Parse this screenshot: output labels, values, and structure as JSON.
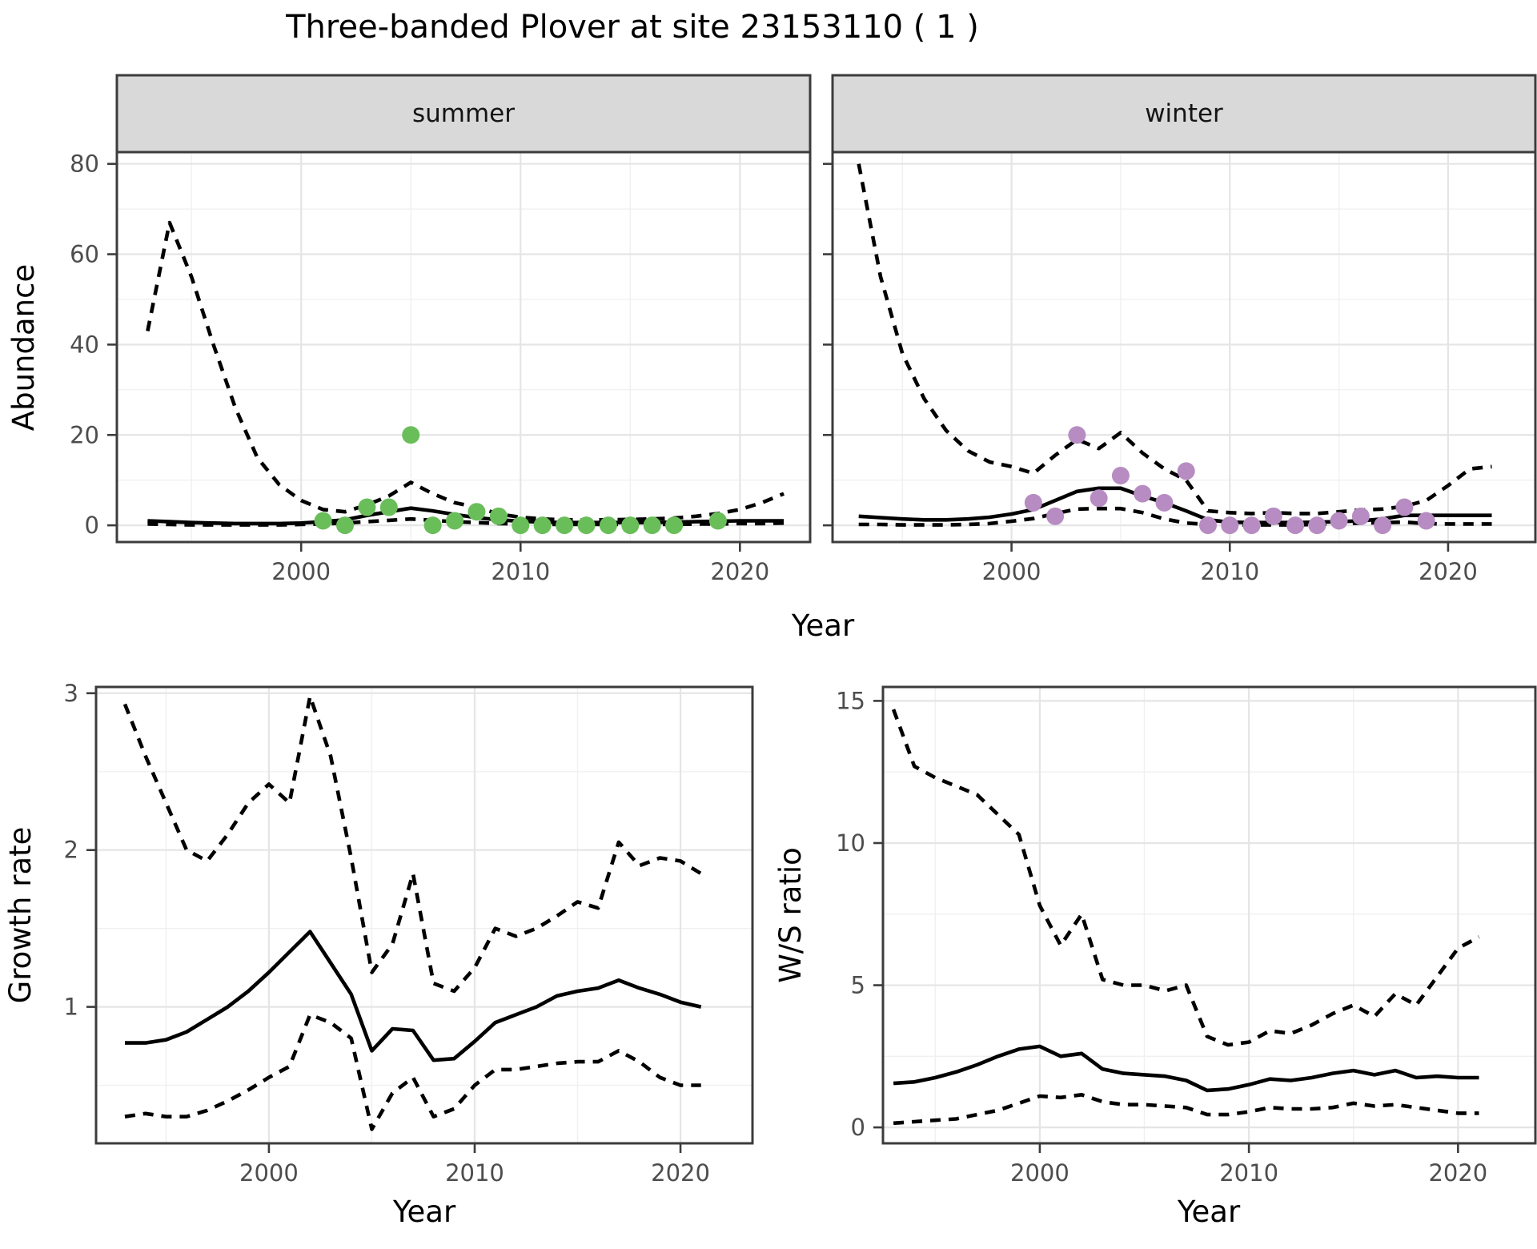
{
  "page": {
    "title": "Three-banded Plover at site 23153110 ( 1 )"
  },
  "colors": {
    "background": "#ffffff",
    "line": "#000000",
    "point_summer": "#6abe5a",
    "point_winter": "#b78cc2",
    "grid_major": "#e5e5e5",
    "grid_minor": "#f0f0f0",
    "panel_border": "#3c3c3c",
    "strip_fill": "#d9d9d9",
    "axis_text": "#4d4d4d"
  },
  "chart_data": [
    {
      "id": "abundance-summer",
      "type": "line",
      "facet_label": "summer",
      "xlabel": "Year",
      "ylabel": "Abundance",
      "xlim": [
        1991.6,
        2023.2
      ],
      "ylim": [
        -3.7,
        82.6
      ],
      "x_major": [
        2000,
        2010,
        2020
      ],
      "x_minor": [
        1995,
        2005,
        2015
      ],
      "y_major": [
        0,
        20,
        40,
        60,
        80
      ],
      "y_minor": [
        10,
        30,
        50,
        70
      ],
      "years": [
        1993,
        1994,
        1995,
        1996,
        1997,
        1998,
        1999,
        2000,
        2001,
        2002,
        2003,
        2004,
        2005,
        2006,
        2007,
        2008,
        2009,
        2010,
        2011,
        2012,
        2013,
        2014,
        2015,
        2016,
        2017,
        2018,
        2019,
        2020,
        2021,
        2022
      ],
      "series": [
        {
          "name": "upper-ci",
          "style": "dashed",
          "values": [
            43,
            67,
            55,
            40,
            26,
            15,
            9,
            5.5,
            3.5,
            3,
            4.5,
            6.5,
            9.5,
            7,
            5,
            4,
            2.5,
            1.8,
            1.4,
            1.2,
            1.2,
            1.2,
            1.3,
            1.4,
            1.6,
            2,
            2.6,
            3.5,
            5,
            7
          ]
        },
        {
          "name": "estimate",
          "style": "solid",
          "values": [
            1.0,
            0.8,
            0.6,
            0.5,
            0.4,
            0.4,
            0.4,
            0.5,
            0.8,
            1.2,
            2.2,
            3.0,
            3.8,
            3.2,
            2.4,
            1.7,
            1.2,
            0.9,
            0.7,
            0.6,
            0.6,
            0.6,
            0.6,
            0.6,
            0.7,
            0.8,
            0.9,
            1.0,
            1.0,
            1.0
          ]
        },
        {
          "name": "lower-ci",
          "style": "dashed",
          "values": [
            0.3,
            0.2,
            0.1,
            0.1,
            0.1,
            0.1,
            0.1,
            0.2,
            0.3,
            0.5,
            0.8,
            1.1,
            1.4,
            1.1,
            0.8,
            0.6,
            0.4,
            0.3,
            0.2,
            0.2,
            0.2,
            0.2,
            0.2,
            0.2,
            0.2,
            0.3,
            0.3,
            0.4,
            0.4,
            0.5
          ]
        },
        {
          "name": "observed-counts",
          "style": "points",
          "color_key": "point_summer",
          "x": [
            2001,
            2002,
            2003,
            2004,
            2005,
            2006,
            2007,
            2008,
            2009,
            2010,
            2011,
            2012,
            2013,
            2014,
            2015,
            2016,
            2017,
            2019
          ],
          "values": [
            1,
            0,
            4,
            4,
            20,
            0,
            1,
            3,
            2,
            0,
            0,
            0,
            0,
            0,
            0,
            0,
            0,
            1
          ]
        }
      ]
    },
    {
      "id": "abundance-winter",
      "type": "line",
      "facet_label": "winter",
      "xlabel": "Year",
      "ylabel": "Abundance",
      "xlim": [
        1991.8,
        2024.0
      ],
      "ylim": [
        -3.7,
        82.6
      ],
      "x_major": [
        2000,
        2010,
        2020
      ],
      "x_minor": [
        1995,
        2005,
        2015
      ],
      "y_major": [
        0,
        20,
        40,
        60,
        80
      ],
      "y_minor": [
        10,
        30,
        50,
        70
      ],
      "years": [
        1993,
        1994,
        1995,
        1996,
        1997,
        1998,
        1999,
        2000,
        2001,
        2002,
        2003,
        2004,
        2005,
        2006,
        2007,
        2008,
        2009,
        2010,
        2011,
        2012,
        2013,
        2014,
        2015,
        2016,
        2017,
        2018,
        2019,
        2020,
        2021,
        2022
      ],
      "series": [
        {
          "name": "upper-ci",
          "style": "dashed",
          "values": [
            80,
            55,
            38,
            28,
            21,
            16.5,
            14,
            13,
            11.5,
            15.5,
            19,
            17,
            20.5,
            16,
            12.5,
            10,
            3.2,
            2.8,
            2.6,
            2.8,
            2.6,
            2.6,
            3,
            3.4,
            3.6,
            4.2,
            5.5,
            8.8,
            12.5,
            13
          ]
        },
        {
          "name": "estimate",
          "style": "solid",
          "values": [
            2.0,
            1.7,
            1.4,
            1.2,
            1.2,
            1.4,
            1.8,
            2.5,
            3.5,
            5.5,
            7.5,
            8.2,
            8.2,
            6.5,
            5.0,
            3.2,
            1.2,
            0.7,
            0.6,
            0.6,
            0.6,
            0.7,
            0.8,
            1.0,
            1.4,
            2.2,
            2.2,
            2.2,
            2.2,
            2.2
          ]
        },
        {
          "name": "lower-ci",
          "style": "dashed",
          "values": [
            0.2,
            0.2,
            0.1,
            0.1,
            0.1,
            0.2,
            0.4,
            0.9,
            1.5,
            2.6,
            3.6,
            3.7,
            3.7,
            2.8,
            1.4,
            0.5,
            0.2,
            0.1,
            0.1,
            0.1,
            0.1,
            0.2,
            0.3,
            0.5,
            0.6,
            0.7,
            0.4,
            0.3,
            0.3,
            0.3
          ]
        },
        {
          "name": "observed-counts",
          "style": "points",
          "color_key": "point_winter",
          "x": [
            2001,
            2002,
            2003,
            2004,
            2005,
            2006,
            2007,
            2008,
            2009,
            2010,
            2011,
            2012,
            2013,
            2014,
            2015,
            2016,
            2017,
            2018,
            2019
          ],
          "values": [
            5,
            2,
            20,
            6,
            11,
            7,
            5,
            12,
            0,
            0,
            0,
            2,
            0,
            0,
            1,
            2,
            0,
            4,
            1
          ]
        }
      ]
    },
    {
      "id": "growth-rate",
      "type": "line",
      "facet_label": null,
      "xlabel": "Year",
      "ylabel": "Growth rate",
      "xlim": [
        1991.6,
        2023.5
      ],
      "ylim": [
        0.13,
        3.04
      ],
      "x_major": [
        2000,
        2010,
        2020
      ],
      "x_minor": [
        1995,
        2005,
        2015
      ],
      "y_major": [
        1,
        2,
        3
      ],
      "y_minor": [
        0.5,
        1.5,
        2.5
      ],
      "years": [
        1993,
        1994,
        1995,
        1996,
        1997,
        1998,
        1999,
        2000,
        2001,
        2002,
        2003,
        2004,
        2005,
        2006,
        2007,
        2008,
        2009,
        2010,
        2011,
        2012,
        2013,
        2014,
        2015,
        2016,
        2017,
        2018,
        2019,
        2020,
        2021
      ],
      "series": [
        {
          "name": "upper-ci",
          "style": "dashed",
          "values": [
            2.93,
            2.6,
            2.3,
            2.0,
            1.93,
            2.1,
            2.3,
            2.42,
            2.3,
            2.98,
            2.6,
            1.95,
            1.22,
            1.4,
            1.85,
            1.15,
            1.1,
            1.25,
            1.5,
            1.45,
            1.5,
            1.58,
            1.67,
            1.63,
            2.05,
            1.9,
            1.95,
            1.93,
            1.85
          ]
        },
        {
          "name": "estimate",
          "style": "solid",
          "values": [
            0.77,
            0.77,
            0.79,
            0.84,
            0.92,
            1.0,
            1.1,
            1.22,
            1.35,
            1.48,
            1.28,
            1.08,
            0.72,
            0.86,
            0.85,
            0.66,
            0.67,
            0.78,
            0.9,
            0.95,
            1.0,
            1.07,
            1.1,
            1.12,
            1.17,
            1.12,
            1.08,
            1.03,
            1.0
          ]
        },
        {
          "name": "lower-ci",
          "style": "dashed",
          "values": [
            0.3,
            0.32,
            0.3,
            0.3,
            0.34,
            0.4,
            0.47,
            0.55,
            0.62,
            0.95,
            0.9,
            0.8,
            0.22,
            0.45,
            0.55,
            0.3,
            0.35,
            0.5,
            0.6,
            0.6,
            0.62,
            0.64,
            0.65,
            0.65,
            0.72,
            0.65,
            0.55,
            0.5,
            0.5
          ]
        }
      ]
    },
    {
      "id": "ws-ratio",
      "type": "line",
      "facet_label": null,
      "xlabel": "Year",
      "ylabel": "W/S ratio",
      "xlim": [
        1992.5,
        2023.7
      ],
      "ylim": [
        -0.56,
        15.49
      ],
      "x_major": [
        2000,
        2010,
        2020
      ],
      "x_minor": [
        1995,
        2005,
        2015
      ],
      "y_major": [
        0,
        5,
        10,
        15
      ],
      "y_minor": [
        2.5,
        7.5,
        12.5
      ],
      "years": [
        1993,
        1994,
        1995,
        1996,
        1997,
        1998,
        1999,
        2000,
        2001,
        2002,
        2003,
        2004,
        2005,
        2006,
        2007,
        2008,
        2009,
        2010,
        2011,
        2012,
        2013,
        2014,
        2015,
        2016,
        2017,
        2018,
        2019,
        2020,
        2021
      ],
      "series": [
        {
          "name": "upper-ci",
          "style": "dashed",
          "values": [
            14.7,
            12.7,
            12.3,
            12.0,
            11.7,
            11.0,
            10.3,
            7.8,
            6.4,
            7.5,
            5.2,
            5.0,
            5.0,
            4.8,
            5.0,
            3.2,
            2.9,
            3.0,
            3.4,
            3.3,
            3.6,
            4.0,
            4.3,
            3.9,
            4.7,
            4.3,
            5.3,
            6.3,
            6.7
          ]
        },
        {
          "name": "estimate",
          "style": "solid",
          "values": [
            1.55,
            1.6,
            1.75,
            1.95,
            2.2,
            2.5,
            2.75,
            2.85,
            2.5,
            2.6,
            2.05,
            1.9,
            1.85,
            1.8,
            1.65,
            1.3,
            1.35,
            1.5,
            1.7,
            1.65,
            1.75,
            1.9,
            2.0,
            1.85,
            2.0,
            1.75,
            1.8,
            1.75,
            1.75
          ]
        },
        {
          "name": "lower-ci",
          "style": "dashed",
          "values": [
            0.15,
            0.2,
            0.25,
            0.3,
            0.45,
            0.6,
            0.85,
            1.1,
            1.05,
            1.15,
            0.9,
            0.8,
            0.8,
            0.75,
            0.7,
            0.45,
            0.45,
            0.55,
            0.7,
            0.65,
            0.65,
            0.7,
            0.85,
            0.75,
            0.8,
            0.7,
            0.6,
            0.5,
            0.5
          ]
        }
      ]
    }
  ]
}
